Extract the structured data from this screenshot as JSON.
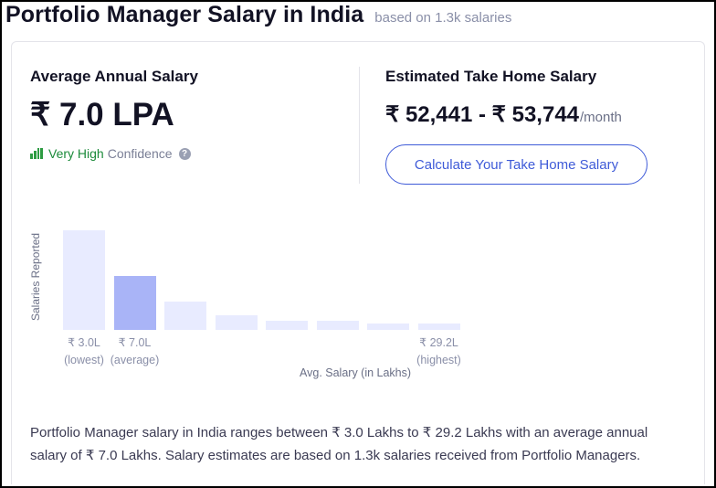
{
  "header": {
    "title": "Portfolio Manager Salary in India",
    "subtitle": "based on 1.3k salaries"
  },
  "average": {
    "label": "Average Annual Salary",
    "value": "₹ 7.0 LPA",
    "confidence_level": "Very High",
    "confidence_word": "Confidence",
    "help_icon": "help-icon"
  },
  "take_home": {
    "label": "Estimated Take Home Salary",
    "amount": "₹ 52,441 - ₹ 53,744",
    "unit": "/month",
    "button_label": "Calculate Your Take Home Salary"
  },
  "chart_data": {
    "type": "bar",
    "ylabel": "Salaries Reported",
    "xlabel": "Avg. Salary (in Lakhs)",
    "values_relative": [
      1.0,
      0.54,
      0.28,
      0.15,
      0.09,
      0.09,
      0.06,
      0.06
    ],
    "highlight_index": 1,
    "tick_labels": [
      {
        "bar_index": 0,
        "value": "₹ 3.0L",
        "note": "(lowest)"
      },
      {
        "bar_index": 1,
        "value": "₹ 7.0L",
        "note": "(average)"
      },
      {
        "bar_index": 7,
        "value": "₹ 29.2L",
        "note": "(highest)"
      }
    ],
    "colors": {
      "bar": "#e8ebff",
      "highlight": "#a9b4f7"
    }
  },
  "description": "Portfolio Manager salary in India ranges between ₹ 3.0 Lakhs to ₹ 29.2 Lakhs with an average annual salary of ₹ 7.0 Lakhs. Salary estimates are based on 1.3k salaries received from Portfolio Managers.",
  "colors": {
    "accent": "#3f5bd8",
    "confidence_green": "#1b8a3a",
    "text_dark": "#121224"
  }
}
